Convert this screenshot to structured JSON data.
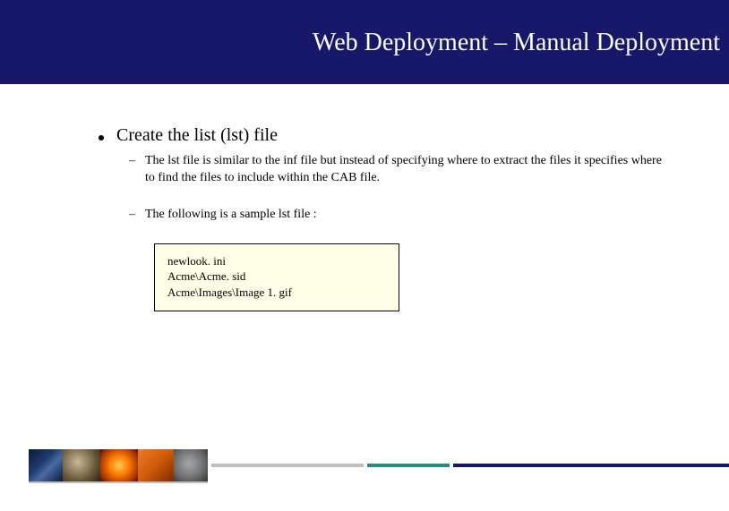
{
  "colors": {
    "header_bg": "#18186b",
    "title_color": "#ffffff",
    "text_color": "#000000",
    "codebox_bg": "#ffffe8",
    "codebox_border": "#000000",
    "footer_gray": "#bfbfbf",
    "footer_teal": "#2a8a8a",
    "footer_blue": "#18186b"
  },
  "title": "Web Deployment – Manual Deployment",
  "bullet": {
    "heading": "Create the list (lst) file",
    "subs": [
      "The lst file is similar to the inf file but instead of specifying where to extract the files it specifies where to find the files to include within the CAB file.",
      "The following is a sample lst file :"
    ]
  },
  "code": {
    "lines": [
      "newlook. ini",
      "Acme\\Acme. sid",
      "Acme\\Images\\Image 1. gif"
    ]
  }
}
